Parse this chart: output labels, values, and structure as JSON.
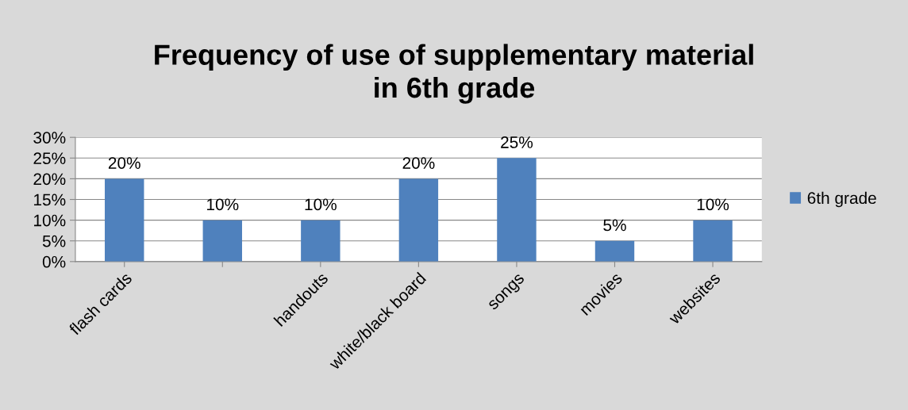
{
  "chart_data": {
    "type": "bar",
    "title": "Frequency of use of supplementary material\nin 6th grade",
    "categories": [
      "flash cards",
      null,
      "handouts",
      "white/black board",
      "songs",
      "movies",
      "websites"
    ],
    "series": [
      {
        "name": "6th grade",
        "color": "#4f81bd",
        "values": [
          20,
          10,
          10,
          20,
          25,
          5,
          10
        ],
        "value_labels": [
          "20%",
          "10%",
          "10%",
          "20%",
          "25%",
          "5%",
          "10%"
        ]
      }
    ],
    "ylim": [
      0,
      30
    ],
    "yticks": [
      {
        "value": 0,
        "label": "0%"
      },
      {
        "value": 5,
        "label": "5%"
      },
      {
        "value": 10,
        "label": "10%"
      },
      {
        "value": 15,
        "label": "15%"
      },
      {
        "value": 20,
        "label": "20%"
      },
      {
        "value": 25,
        "label": "25%"
      },
      {
        "value": 30,
        "label": "30%"
      }
    ],
    "grid": "y",
    "legend": "right"
  }
}
